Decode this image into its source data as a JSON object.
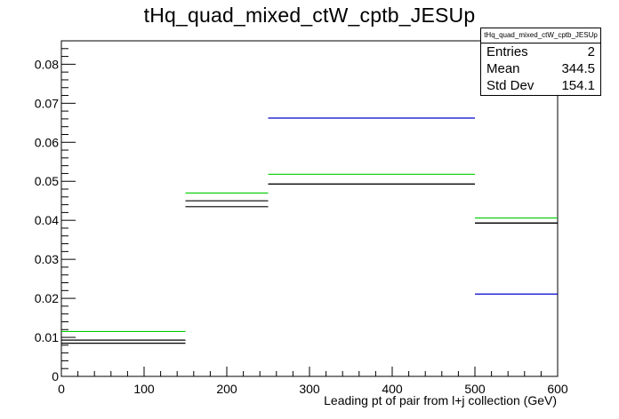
{
  "chart_data": {
    "type": "histogram",
    "title": "tHq_quad_mixed_ctW_cptb_JESUp",
    "xlabel": "Leading pt of pair from l+j collection (GeV)",
    "ylabel": "",
    "xlim": [
      0,
      600
    ],
    "ylim": [
      0,
      0.086
    ],
    "xticks": [
      "0",
      "100",
      "200",
      "300",
      "400",
      "500",
      "600"
    ],
    "yticks": [
      "0",
      "0.01",
      "0.02",
      "0.03",
      "0.04",
      "0.05",
      "0.06",
      "0.07",
      "0.08"
    ],
    "bin_edges": [
      0,
      150,
      250,
      500,
      600
    ],
    "series": [
      {
        "color": "#000000",
        "values": [
          0.0085,
          0.0435,
          0.0493,
          0.0393
        ]
      },
      {
        "color": "#000000",
        "values": [
          0.0093,
          0.045,
          0.0493,
          0.0393
        ]
      },
      {
        "color": "#00cc00",
        "values": [
          0.0115,
          0.047,
          0.0518,
          0.0406
        ]
      },
      {
        "color": "#0000cc",
        "values": [
          null,
          null,
          0.0662,
          0.0211
        ]
      }
    ],
    "stats": {
      "name": "tHq_quad_mixed_ctW_cptb_JESUp",
      "entries_label": "Entries",
      "entries": "2",
      "mean_label": "Mean",
      "mean": "344.5",
      "stddev_label": "Std Dev",
      "stddev": "154.1"
    }
  }
}
